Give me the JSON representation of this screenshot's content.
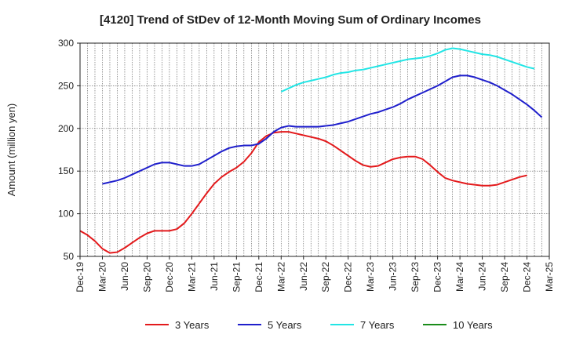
{
  "chart_data": {
    "type": "line",
    "title": "[4120]  Trend of StDev of 12-Month Moving Sum of Ordinary Incomes",
    "xlabel": "",
    "ylabel": "Amount (million yen)",
    "ylim": [
      50,
      300
    ],
    "yticks": [
      50,
      100,
      150,
      200,
      250,
      300
    ],
    "grid": true,
    "legend_position": "bottom",
    "x_tick_labels": [
      "Dec-19",
      "Mar-20",
      "Jun-20",
      "Sep-20",
      "Dec-20",
      "Mar-21",
      "Jun-21",
      "Sep-21",
      "Dec-21",
      "Mar-22",
      "Jun-22",
      "Sep-22",
      "Dec-22",
      "Mar-23",
      "Jun-23",
      "Sep-23",
      "Dec-23",
      "Mar-24",
      "Jun-24",
      "Sep-24",
      "Dec-24",
      "Mar-25"
    ],
    "x_months": [
      "Dec-19",
      "Jan-20",
      "Feb-20",
      "Mar-20",
      "Apr-20",
      "May-20",
      "Jun-20",
      "Jul-20",
      "Aug-20",
      "Sep-20",
      "Oct-20",
      "Nov-20",
      "Dec-20",
      "Jan-21",
      "Feb-21",
      "Mar-21",
      "Apr-21",
      "May-21",
      "Jun-21",
      "Jul-21",
      "Aug-21",
      "Sep-21",
      "Oct-21",
      "Nov-21",
      "Dec-21",
      "Jan-22",
      "Feb-22",
      "Mar-22",
      "Apr-22",
      "May-22",
      "Jun-22",
      "Jul-22",
      "Aug-22",
      "Sep-22",
      "Oct-22",
      "Nov-22",
      "Dec-22",
      "Jan-23",
      "Feb-23",
      "Mar-23",
      "Apr-23",
      "May-23",
      "Jun-23",
      "Jul-23",
      "Aug-23",
      "Sep-23",
      "Oct-23",
      "Nov-23",
      "Dec-23",
      "Jan-24",
      "Feb-24",
      "Mar-24",
      "Apr-24",
      "May-24",
      "Jun-24",
      "Jul-24",
      "Aug-24",
      "Sep-24",
      "Oct-24",
      "Nov-24",
      "Dec-24",
      "Jan-25",
      "Feb-25",
      "Mar-25"
    ],
    "series": [
      {
        "name": "3 Years",
        "color": "#e31a1c",
        "start_index": 0,
        "values": [
          80,
          75,
          68,
          59,
          54,
          55,
          60,
          66,
          72,
          77,
          80,
          80,
          80,
          82,
          89,
          100,
          112,
          124,
          135,
          143,
          149,
          154,
          161,
          171,
          184,
          191,
          195,
          196,
          196,
          194,
          192,
          190,
          188,
          185,
          180,
          174,
          168,
          162,
          157,
          155,
          156,
          160,
          164,
          166,
          167,
          167,
          164,
          157,
          149,
          142,
          139,
          137,
          135,
          134,
          133,
          133,
          134,
          137,
          140,
          143,
          145
        ]
      },
      {
        "name": "5 Years",
        "color": "#1f1fcc",
        "start_index": 3,
        "values": [
          135,
          137,
          139,
          142,
          146,
          150,
          154,
          158,
          160,
          160,
          158,
          156,
          156,
          158,
          163,
          168,
          173,
          177,
          179,
          180,
          180,
          182,
          188,
          196,
          201,
          203,
          202,
          202,
          202,
          202,
          203,
          204,
          206,
          208,
          211,
          214,
          217,
          219,
          222,
          225,
          229,
          234,
          238,
          242,
          246,
          250,
          255,
          260,
          262,
          262,
          260,
          257,
          254,
          250,
          245,
          240,
          234,
          228,
          221,
          213
        ]
      },
      {
        "name": "7 Years",
        "color": "#22e5e5",
        "start_index": 27,
        "values": [
          243,
          247,
          251,
          254,
          256,
          258,
          260,
          263,
          265,
          266,
          268,
          269,
          271,
          273,
          275,
          277,
          279,
          281,
          282,
          283,
          285,
          288,
          292,
          294,
          293,
          291,
          289,
          287,
          286,
          284,
          281,
          278,
          275,
          272,
          270
        ]
      },
      {
        "name": "10 Years",
        "color": "#1a8c1a",
        "start_index": 0,
        "values": []
      }
    ]
  }
}
